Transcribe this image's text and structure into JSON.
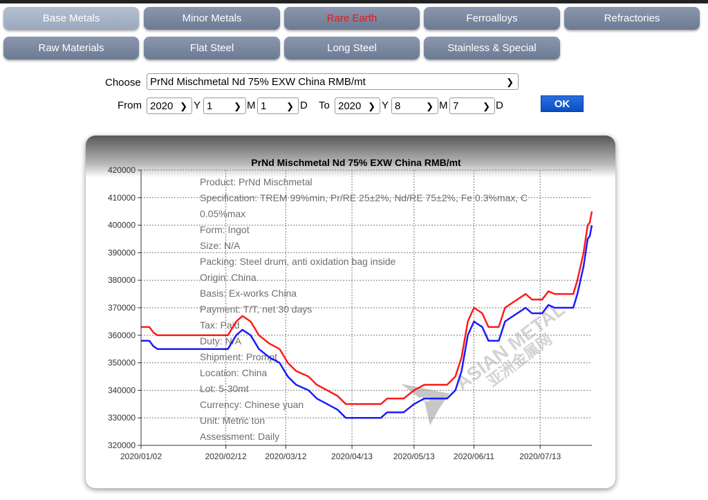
{
  "nav": {
    "items": [
      {
        "label": "Base Metals"
      },
      {
        "label": "Minor Metals"
      },
      {
        "label": "Rare Earth"
      },
      {
        "label": "Ferroalloys"
      },
      {
        "label": "Refractories"
      },
      {
        "label": "Raw Materials"
      },
      {
        "label": "Flat Steel"
      },
      {
        "label": "Long Steel"
      },
      {
        "label": "Stainless & Special"
      }
    ],
    "active_color": "#e8141a"
  },
  "form": {
    "choose_label": "Choose",
    "product_value": "PrNd Mischmetal Nd 75% EXW China RMB/mt",
    "from_label": "From",
    "to_label": "To",
    "y_label": "Y",
    "m_label": "M",
    "d_label": "D",
    "from_year": "2020",
    "from_month": "1",
    "from_day": "1",
    "to_year": "2020",
    "to_month": "8",
    "to_day": "7",
    "ok_label": "OK"
  },
  "watermark": {
    "brand": "ASIAN METAL",
    "brand_cn": "亚洲金属网",
    "logo": "AM"
  },
  "chart_data": {
    "type": "line",
    "title": "PrNd Mischmetal Nd 75% EXW China RMB/mt",
    "xlabel": "",
    "ylabel": "",
    "x_range": [
      "2020-01-02",
      "2020-08-07"
    ],
    "ylim": [
      320000,
      420000
    ],
    "y_ticks": [
      320000,
      330000,
      340000,
      350000,
      360000,
      370000,
      380000,
      390000,
      400000,
      410000,
      420000
    ],
    "x_ticks": [
      "2020/01/02",
      "2020/02/12",
      "2020/03/12",
      "2020/04/13",
      "2020/05/13",
      "2020/06/11",
      "2020/07/13"
    ],
    "grid": true,
    "series_colors": [
      "#ff1a1a",
      "#1a1aff"
    ],
    "series": [
      {
        "color": "#ff1a1a",
        "points": [
          [
            "2020-01-02",
            363000
          ],
          [
            "2020-01-06",
            363000
          ],
          [
            "2020-01-08",
            361000
          ],
          [
            "2020-01-10",
            360000
          ],
          [
            "2020-02-13",
            360000
          ],
          [
            "2020-02-17",
            365000
          ],
          [
            "2020-02-20",
            367000
          ],
          [
            "2020-02-24",
            365000
          ],
          [
            "2020-02-28",
            360000
          ],
          [
            "2020-03-04",
            357000
          ],
          [
            "2020-03-09",
            355000
          ],
          [
            "2020-03-13",
            350000
          ],
          [
            "2020-03-17",
            347000
          ],
          [
            "2020-03-23",
            345000
          ],
          [
            "2020-03-27",
            342000
          ],
          [
            "2020-04-01",
            340000
          ],
          [
            "2020-04-06",
            338000
          ],
          [
            "2020-04-10",
            335000
          ],
          [
            "2020-04-27",
            335000
          ],
          [
            "2020-04-30",
            337000
          ],
          [
            "2020-05-08",
            337000
          ],
          [
            "2020-05-13",
            340000
          ],
          [
            "2020-05-18",
            342000
          ],
          [
            "2020-05-29",
            342000
          ],
          [
            "2020-06-02",
            345000
          ],
          [
            "2020-06-05",
            352000
          ],
          [
            "2020-06-08",
            365000
          ],
          [
            "2020-06-11",
            370000
          ],
          [
            "2020-06-15",
            368000
          ],
          [
            "2020-06-18",
            363000
          ],
          [
            "2020-06-23",
            363000
          ],
          [
            "2020-06-26",
            370000
          ],
          [
            "2020-06-30",
            372000
          ],
          [
            "2020-07-06",
            375000
          ],
          [
            "2020-07-09",
            373000
          ],
          [
            "2020-07-14",
            373000
          ],
          [
            "2020-07-17",
            376000
          ],
          [
            "2020-07-20",
            375000
          ],
          [
            "2020-07-29",
            375000
          ],
          [
            "2020-07-31",
            380000
          ],
          [
            "2020-08-03",
            390000
          ],
          [
            "2020-08-05",
            400000
          ],
          [
            "2020-08-06",
            401000
          ],
          [
            "2020-08-07",
            405000
          ]
        ]
      },
      {
        "color": "#1a1aff",
        "points": [
          [
            "2020-01-02",
            358000
          ],
          [
            "2020-01-06",
            358000
          ],
          [
            "2020-01-08",
            356000
          ],
          [
            "2020-01-10",
            355000
          ],
          [
            "2020-02-13",
            355000
          ],
          [
            "2020-02-17",
            360000
          ],
          [
            "2020-02-20",
            362000
          ],
          [
            "2020-02-24",
            360000
          ],
          [
            "2020-02-28",
            355000
          ],
          [
            "2020-03-04",
            352000
          ],
          [
            "2020-03-09",
            350000
          ],
          [
            "2020-03-13",
            345000
          ],
          [
            "2020-03-17",
            342000
          ],
          [
            "2020-03-23",
            340000
          ],
          [
            "2020-03-27",
            337000
          ],
          [
            "2020-04-01",
            335000
          ],
          [
            "2020-04-06",
            333000
          ],
          [
            "2020-04-10",
            330000
          ],
          [
            "2020-04-27",
            330000
          ],
          [
            "2020-04-30",
            332000
          ],
          [
            "2020-05-08",
            332000
          ],
          [
            "2020-05-13",
            335000
          ],
          [
            "2020-05-18",
            337000
          ],
          [
            "2020-05-29",
            337000
          ],
          [
            "2020-06-02",
            340000
          ],
          [
            "2020-06-05",
            347000
          ],
          [
            "2020-06-08",
            360000
          ],
          [
            "2020-06-11",
            365000
          ],
          [
            "2020-06-15",
            363000
          ],
          [
            "2020-06-18",
            358000
          ],
          [
            "2020-06-23",
            358000
          ],
          [
            "2020-06-26",
            365000
          ],
          [
            "2020-06-30",
            367000
          ],
          [
            "2020-07-06",
            370000
          ],
          [
            "2020-07-09",
            368000
          ],
          [
            "2020-07-14",
            368000
          ],
          [
            "2020-07-17",
            371000
          ],
          [
            "2020-07-20",
            370000
          ],
          [
            "2020-07-29",
            370000
          ],
          [
            "2020-07-31",
            375000
          ],
          [
            "2020-08-03",
            385000
          ],
          [
            "2020-08-05",
            395000
          ],
          [
            "2020-08-06",
            396000
          ],
          [
            "2020-08-07",
            400000
          ]
        ]
      }
    ],
    "annotations": [
      "Product: PrNd Mischmetal",
      "Specification: TREM 99%min, Pr/RE 25±2%, Nd/RE 75±2%, Fe 0.3%max, C",
      "0.05%max",
      "Form: Ingot",
      "Size: N/A",
      "Packing: Steel drum, anti oxidation bag inside",
      "Origin: China",
      "Basis: Ex-works China",
      "Payment: T/T, net 30 days",
      "Tax: Paid",
      "Duty: N/A",
      "Shipment: Prompt",
      "Location: China",
      "Lot: 5-30mt",
      "Currency: Chinese yuan",
      "Unit: Metric ton",
      "Assessment: Daily"
    ]
  }
}
